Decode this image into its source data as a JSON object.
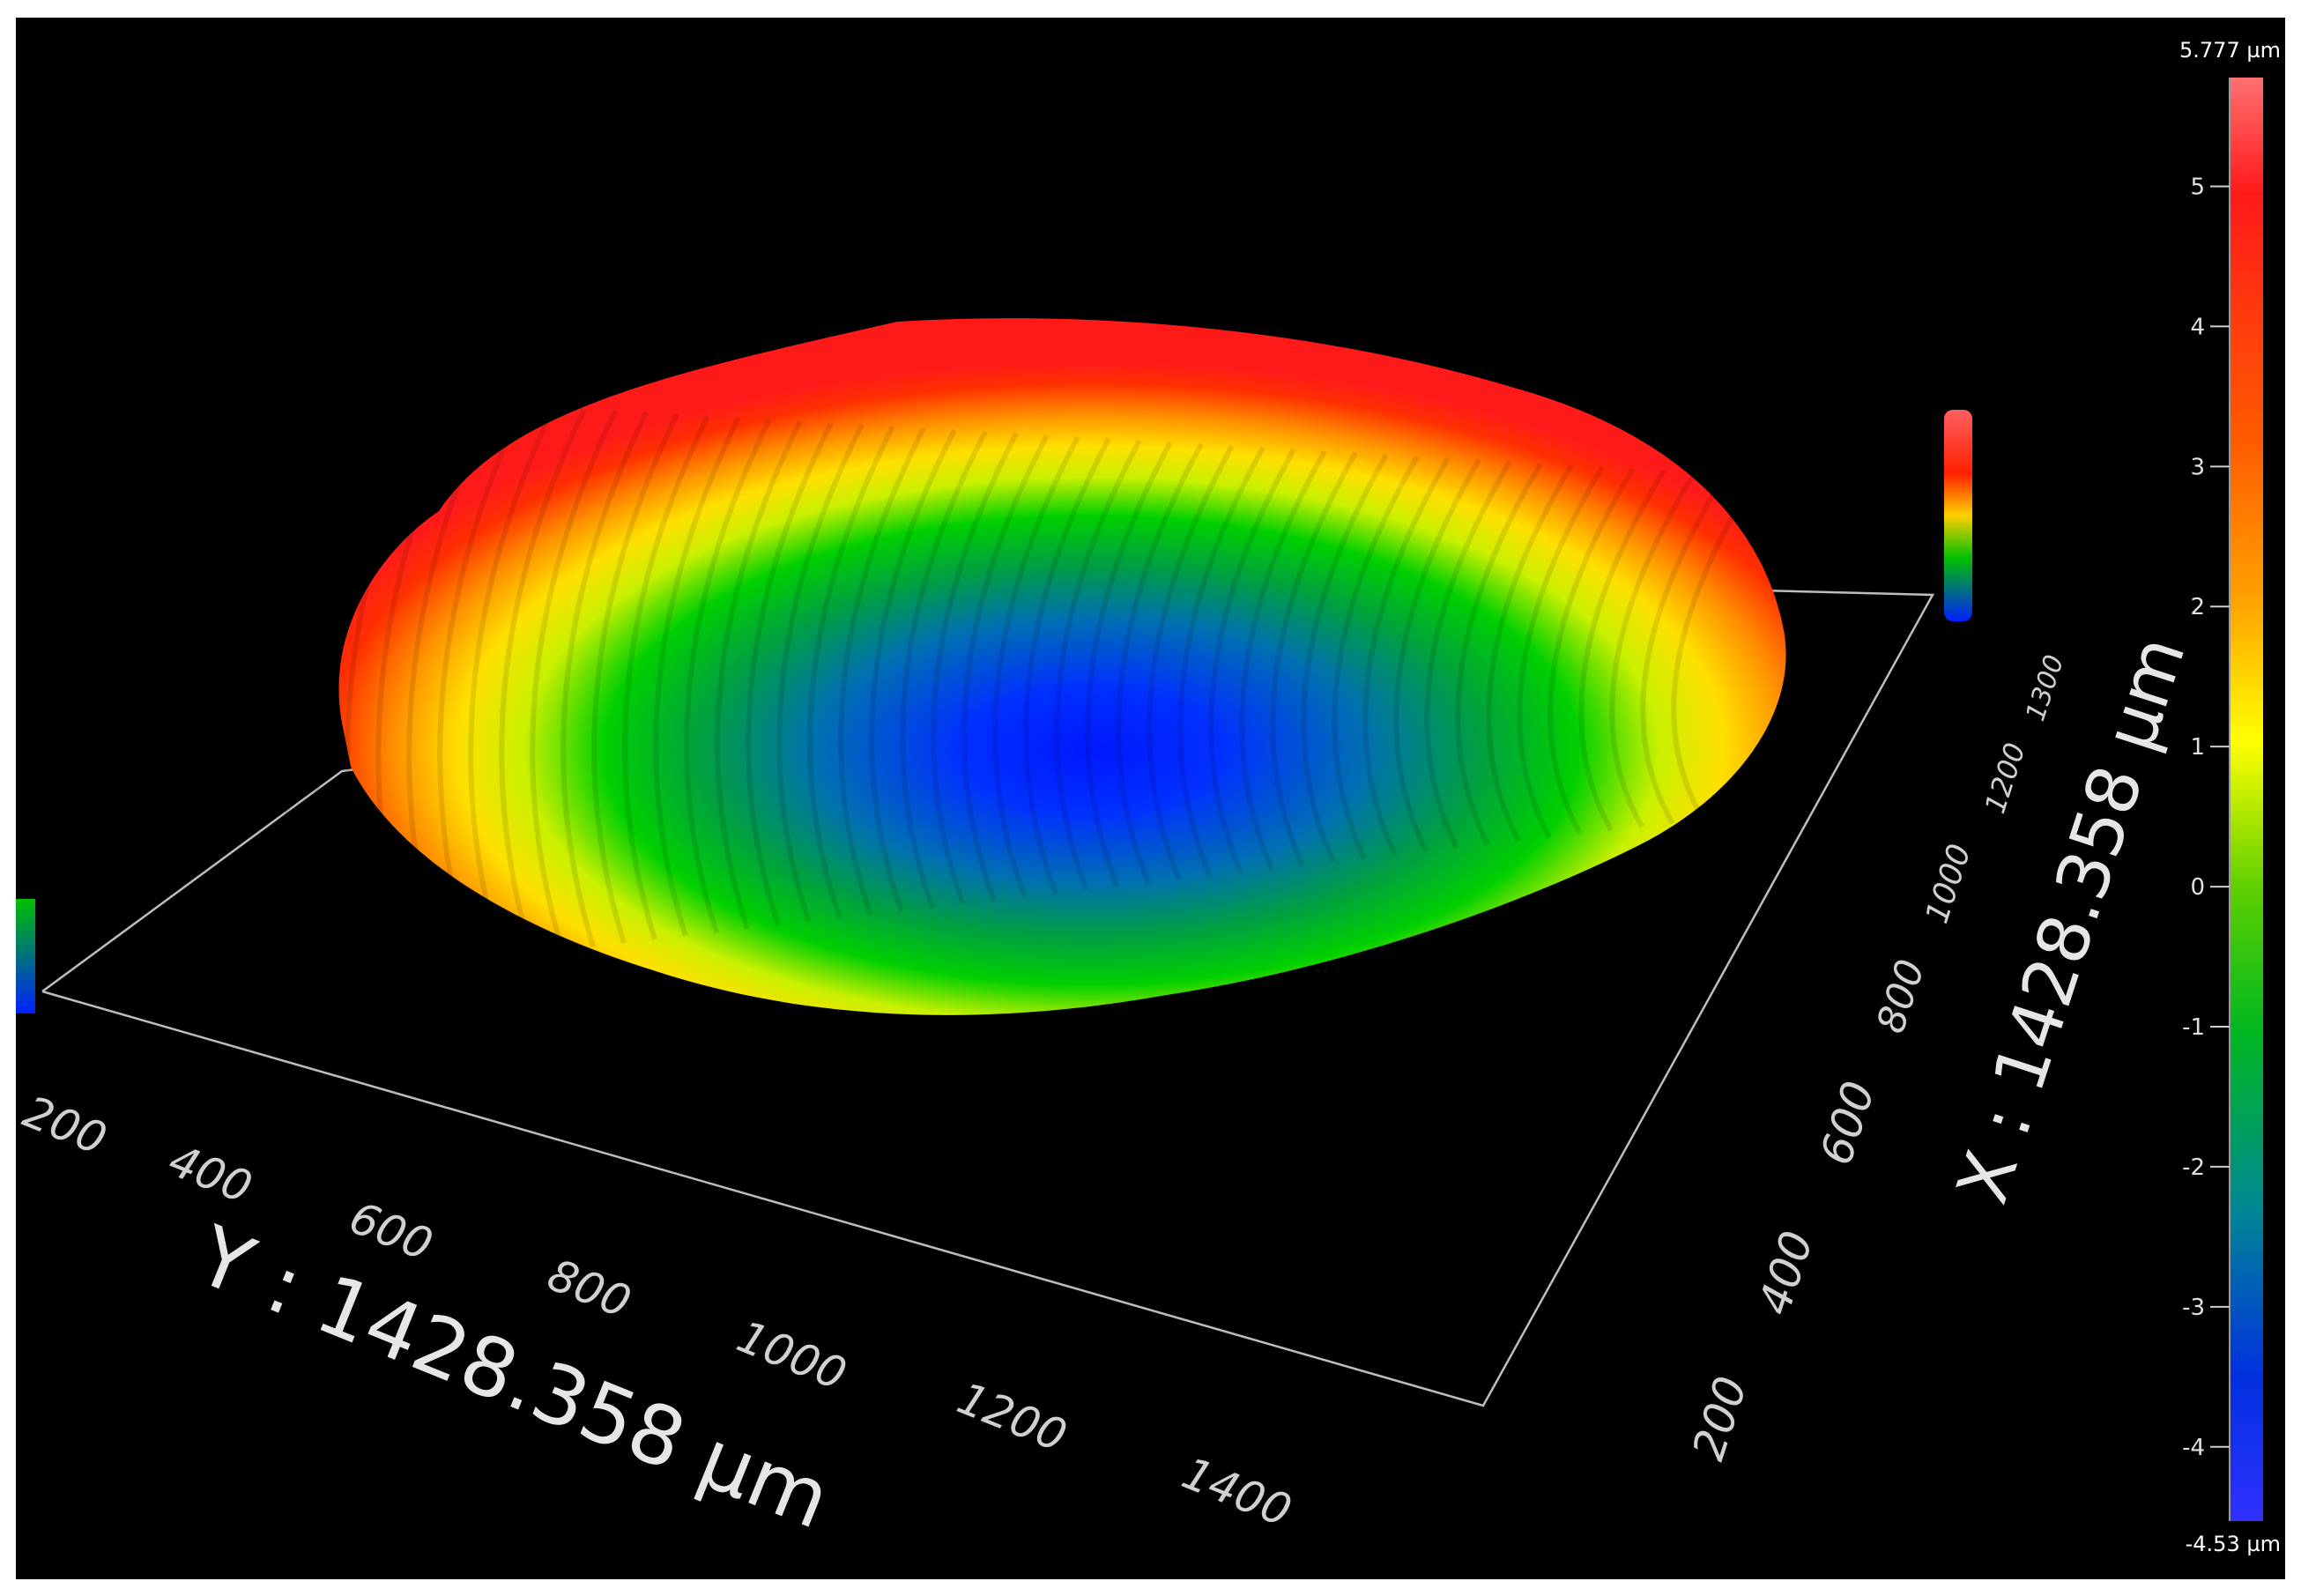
{
  "surface": {
    "y_axis": {
      "title": "Y : 1428.358 µm",
      "ticks": [
        "200",
        "400",
        "600",
        "800",
        "1000",
        "1200",
        "1400"
      ]
    },
    "x_axis": {
      "title": "X : 1428.358 µm",
      "ticks": [
        "200",
        "400",
        "600",
        "800",
        "1000",
        "1200",
        "1300"
      ]
    },
    "colorscale": {
      "max_label": "5.777 µm",
      "min_label": "-4.53 µm",
      "ticks": [
        "5",
        "4",
        "3",
        "2",
        "1",
        "0",
        "-1",
        "-2",
        "-3",
        "-4"
      ],
      "tick_values": [
        5,
        4,
        3,
        2,
        1,
        0,
        -1,
        -2,
        -3,
        -4
      ],
      "max_value": 5.777,
      "min_value": -4.53,
      "colors": [
        "#ff6a6a",
        "#ff0000",
        "#ff6a00",
        "#ffd000",
        "#ffff00",
        "#a0e000",
        "#00c800",
        "#009a70",
        "#0060c0",
        "#0010ff",
        "#3a3aff"
      ]
    }
  }
}
